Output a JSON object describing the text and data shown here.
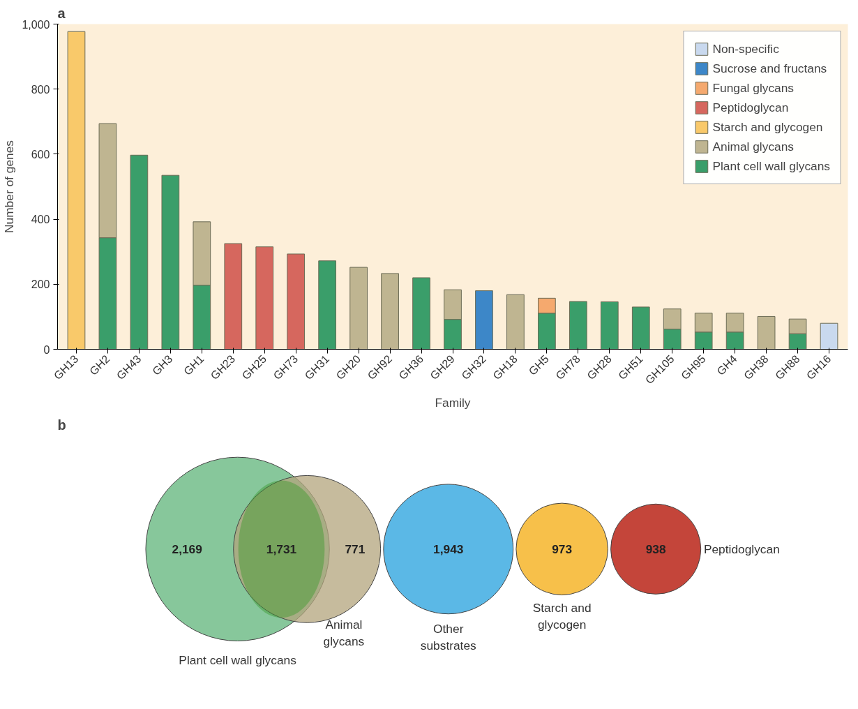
{
  "chart_data": [
    {
      "type": "bar",
      "title": "a",
      "xlabel": "Family",
      "ylabel": "Number of genes",
      "stacked": true,
      "legend": "top right",
      "grid": false,
      "categories": [
        "GH13",
        "GH2",
        "GH43",
        "GH3",
        "GH1",
        "GH23",
        "GH25",
        "GH73",
        "GH31",
        "GH20",
        "GH92",
        "GH36",
        "GH29",
        "GH32",
        "GH18",
        "GH5",
        "GH78",
        "GH28",
        "GH51",
        "GH105",
        "GH95",
        "GH4",
        "GH38",
        "GH88",
        "GH16"
      ],
      "ylim": [
        0,
        1000
      ],
      "yticks": [
        0,
        200,
        400,
        600,
        800,
        {
          "value": 1000,
          "label": "1,000"
        }
      ],
      "series": [
        {
          "name": "Plant cell wall glycans",
          "color": "#3a9e6a",
          "values": [
            null,
            343,
            597,
            535,
            197,
            null,
            null,
            null,
            272,
            null,
            null,
            220,
            92,
            null,
            null,
            111,
            147,
            146,
            130,
            62,
            53,
            53,
            null,
            48,
            null
          ]
        },
        {
          "name": "Animal glycans",
          "color": "#bfb591",
          "values": [
            null,
            351,
            null,
            null,
            195,
            null,
            null,
            null,
            null,
            252,
            233,
            null,
            91,
            null,
            168,
            null,
            null,
            null,
            null,
            62,
            58,
            58,
            101,
            45,
            null
          ]
        },
        {
          "name": "Starch and glycogen",
          "color": "#f9c96a",
          "values": [
            977,
            null,
            null,
            null,
            null,
            null,
            null,
            null,
            null,
            null,
            null,
            null,
            null,
            null,
            null,
            null,
            null,
            null,
            null,
            null,
            null,
            null,
            null,
            null,
            null
          ]
        },
        {
          "name": "Peptidoglycan",
          "color": "#d6675e",
          "values": [
            null,
            null,
            null,
            null,
            null,
            325,
            315,
            293,
            null,
            null,
            null,
            null,
            null,
            null,
            null,
            null,
            null,
            null,
            null,
            null,
            null,
            null,
            null,
            null,
            null
          ]
        },
        {
          "name": "Fungal glycans",
          "color": "#f5a96e",
          "values": [
            null,
            null,
            null,
            null,
            null,
            null,
            null,
            null,
            null,
            null,
            null,
            null,
            null,
            null,
            null,
            46,
            null,
            null,
            null,
            null,
            null,
            null,
            null,
            null,
            null
          ]
        },
        {
          "name": "Sucrose and fructans",
          "color": "#3d87c8",
          "values": [
            null,
            null,
            null,
            null,
            null,
            null,
            null,
            null,
            null,
            null,
            null,
            null,
            null,
            180,
            null,
            null,
            null,
            null,
            null,
            null,
            null,
            null,
            null,
            null,
            null
          ]
        },
        {
          "name": "Non-specific",
          "color": "#c9d9ee",
          "values": [
            null,
            null,
            null,
            null,
            null,
            null,
            null,
            null,
            null,
            null,
            null,
            null,
            null,
            null,
            null,
            null,
            null,
            null,
            null,
            null,
            null,
            null,
            null,
            null,
            80
          ]
        }
      ]
    },
    {
      "type": "other",
      "title": "b",
      "categories": [
        "Plant cell wall glycans",
        null,
        "Animal glycans",
        "Other substrates",
        "Starch and glycogen",
        "Peptidoglycan"
      ],
      "values": [
        2169,
        1731,
        771,
        1943,
        973,
        938
      ],
      "value_labels": [
        "2,169",
        "1,731",
        "771",
        "1,943",
        "973",
        "938"
      ],
      "colors": [
        "#5fb47a",
        "#3c9a2e",
        "#b3a47c",
        "#5bb8e6",
        "#f7c04a",
        "#c4453a"
      ]
    }
  ]
}
